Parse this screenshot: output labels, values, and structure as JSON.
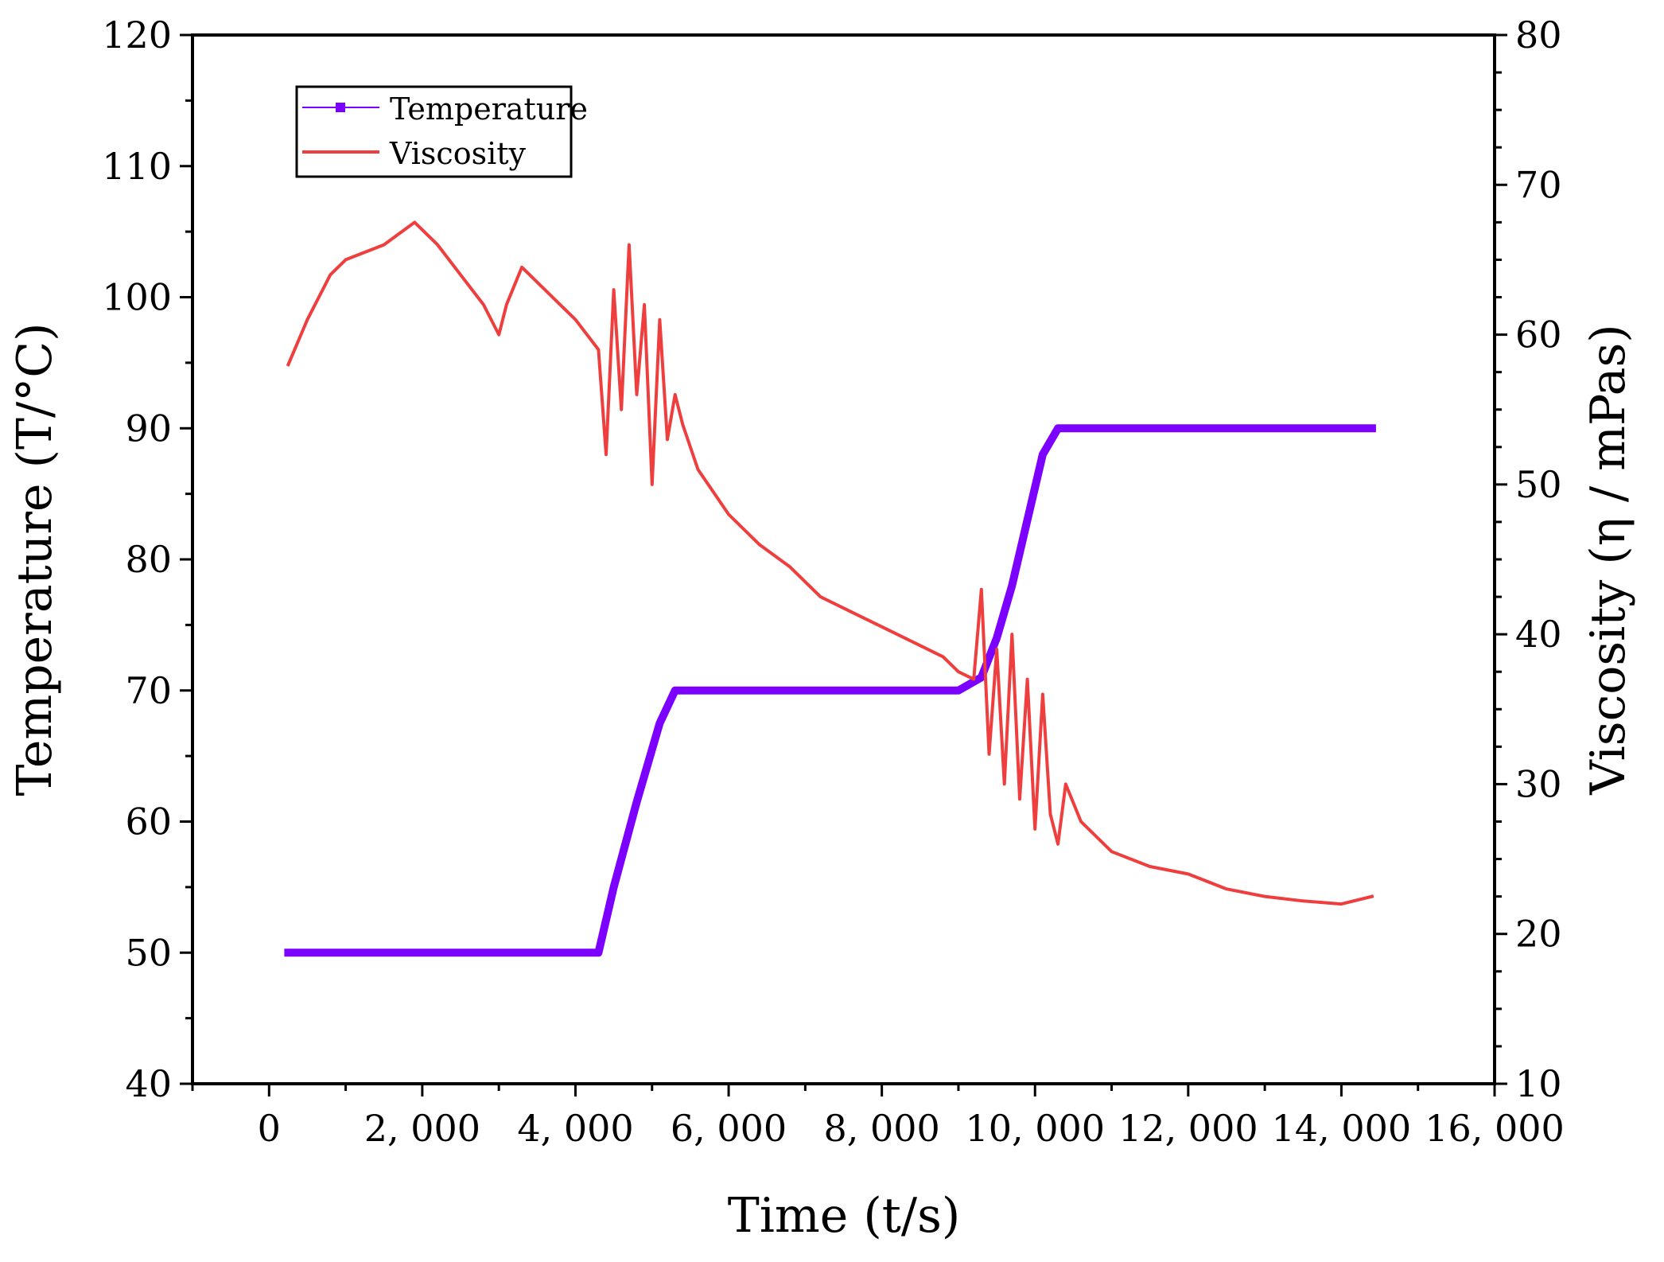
{
  "chart_data": {
    "type": "line",
    "title": "",
    "xlabel": "Time (t/s)",
    "ylabel_left": "Temperature (T/°C)",
    "ylabel_right": "Viscosity (η / mPas)",
    "xlim": [
      -1000,
      16000
    ],
    "ylim_left": [
      40,
      120
    ],
    "ylim_right": [
      10,
      80
    ],
    "x_ticks": [
      0,
      2000,
      4000,
      6000,
      8000,
      10000,
      12000,
      14000,
      16000
    ],
    "x_tick_labels": [
      "0",
      "2, 000",
      "4, 000",
      "6, 000",
      "8, 000",
      "10, 000",
      "12, 000",
      "14, 000",
      "16, 000"
    ],
    "y_left_ticks": [
      40,
      50,
      60,
      70,
      80,
      90,
      100,
      110,
      120
    ],
    "y_left_tick_labels": [
      "40",
      "50",
      "60",
      "70",
      "80",
      "90",
      "100",
      "110",
      "120"
    ],
    "y_right_ticks": [
      10,
      20,
      30,
      40,
      50,
      60,
      70,
      80
    ],
    "y_right_tick_labels": [
      "10",
      "20",
      "30",
      "40",
      "50",
      "60",
      "70",
      "80"
    ],
    "legend_position": "top-left",
    "colors": {
      "temperature": "#7b00ff",
      "viscosity": "#ee3e3e",
      "axis": "#000000"
    },
    "series": [
      {
        "name": "Temperature",
        "axis": "left",
        "x": [
          250,
          1000,
          2000,
          3000,
          4000,
          4300,
          4500,
          4800,
          5100,
          5300,
          6000,
          7000,
          8000,
          9000,
          9300,
          9500,
          9700,
          9900,
          10100,
          10300,
          11000,
          12000,
          13000,
          14000,
          14400
        ],
        "values": [
          50,
          50,
          50,
          50,
          50,
          50,
          55,
          61.5,
          67.5,
          70,
          70,
          70,
          70,
          70,
          71,
          74,
          78,
          83,
          88,
          90,
          90,
          90,
          90,
          90,
          90
        ]
      },
      {
        "name": "Viscosity",
        "axis": "right",
        "x": [
          250,
          500,
          800,
          1000,
          1500,
          1900,
          2200,
          2500,
          2800,
          3000,
          3100,
          3300,
          3600,
          4000,
          4300,
          4400,
          4500,
          4600,
          4700,
          4800,
          4900,
          5000,
          5100,
          5200,
          5300,
          5400,
          5600,
          6000,
          6400,
          6800,
          7200,
          7600,
          8000,
          8400,
          8800,
          9000,
          9200,
          9300,
          9400,
          9500,
          9600,
          9700,
          9800,
          9900,
          10000,
          10100,
          10200,
          10300,
          10400,
          10600,
          11000,
          11500,
          12000,
          12500,
          13000,
          13500,
          14000,
          14400
        ],
        "values": [
          58,
          61,
          64,
          65,
          66,
          67.5,
          66,
          64,
          62,
          60,
          62,
          64.5,
          63,
          61,
          59,
          52,
          63,
          55,
          66,
          56,
          62,
          50,
          61,
          53,
          56,
          54,
          51,
          48,
          46,
          44.5,
          42.5,
          41.5,
          40.5,
          39.5,
          38.5,
          37.5,
          37,
          43,
          32,
          39,
          30,
          40,
          29,
          37,
          27,
          36,
          28,
          26,
          30,
          27.5,
          25.5,
          24.5,
          24,
          23,
          22.5,
          22.2,
          22.0,
          22.5
        ]
      }
    ]
  }
}
